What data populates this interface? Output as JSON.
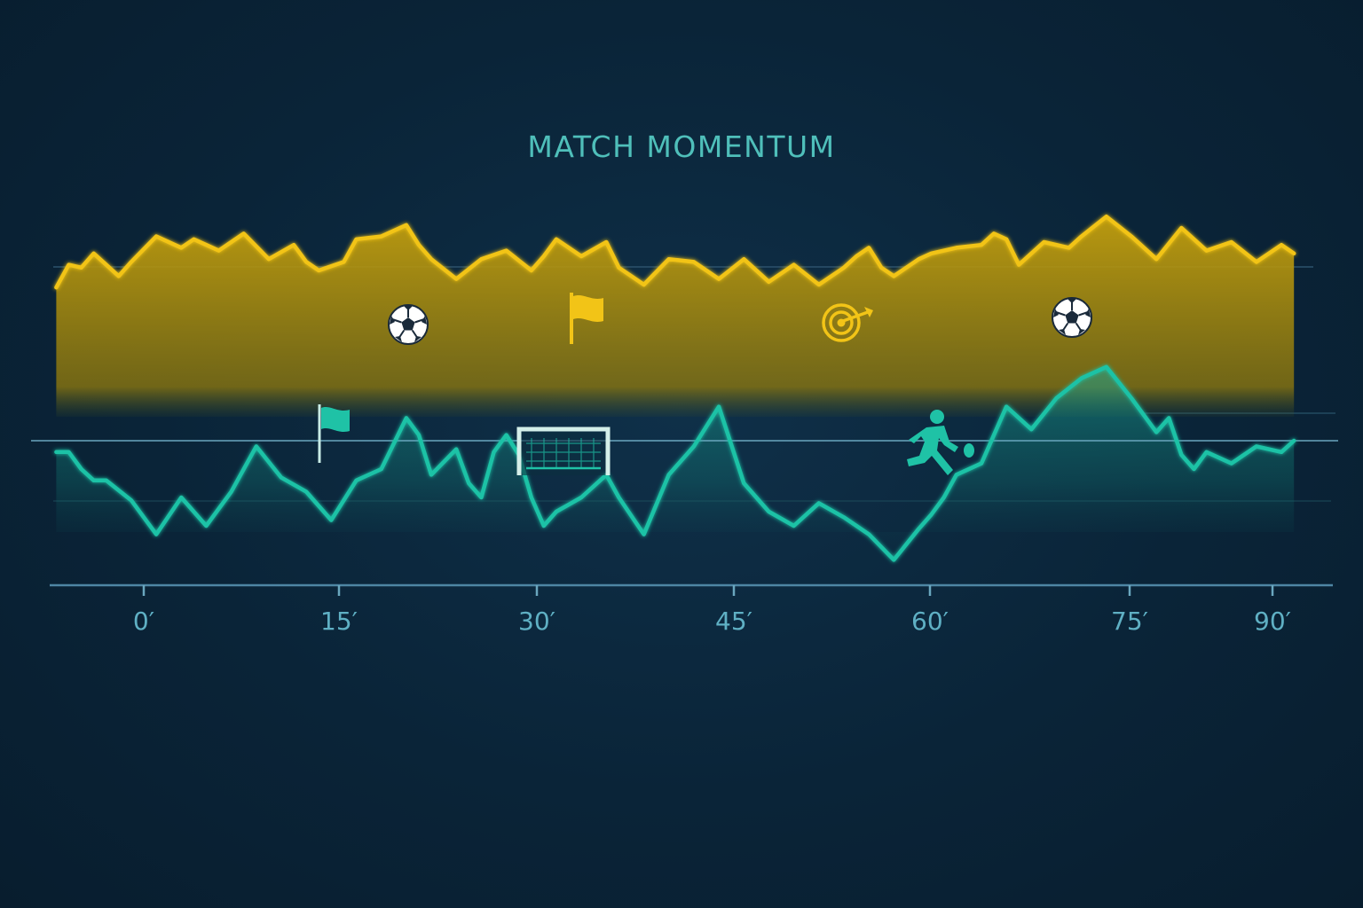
{
  "chart_data": {
    "type": "area",
    "title": "MATCH MOMENTUM",
    "xlabel": "",
    "ylabel": "",
    "x_ticks": [
      "0′",
      "15′",
      "30′",
      "45′",
      "60′",
      "75′",
      "90′"
    ],
    "xlim": [
      -7,
      93
    ],
    "ylim": [
      -1,
      1
    ],
    "grid": false,
    "legend": "none",
    "series": [
      {
        "color": "#f2c417",
        "x": [
          -7,
          -6,
          -5,
          -4,
          -3,
          -2,
          -1,
          1,
          3,
          4,
          6,
          8,
          10,
          12,
          13,
          14,
          16,
          17,
          19,
          21,
          22,
          23,
          25,
          27,
          29,
          31,
          32,
          33,
          35,
          37,
          38,
          40,
          42,
          44,
          46,
          48,
          50,
          52,
          54,
          56,
          57,
          58,
          59,
          60,
          62,
          63,
          65,
          67,
          68,
          69,
          70,
          72,
          74,
          75,
          77,
          79,
          81,
          83,
          85,
          87,
          89,
          91,
          92
        ],
        "values": [
          0.54,
          0.62,
          0.61,
          0.66,
          0.62,
          0.58,
          0.63,
          0.72,
          0.68,
          0.71,
          0.67,
          0.73,
          0.64,
          0.69,
          0.63,
          0.6,
          0.63,
          0.71,
          0.72,
          0.76,
          0.69,
          0.64,
          0.57,
          0.64,
          0.67,
          0.6,
          0.65,
          0.71,
          0.65,
          0.7,
          0.61,
          0.55,
          0.64,
          0.63,
          0.57,
          0.64,
          0.56,
          0.62,
          0.55,
          0.61,
          0.65,
          0.68,
          0.61,
          0.58,
          0.64,
          0.66,
          0.68,
          0.69,
          0.73,
          0.71,
          0.62,
          0.7,
          0.68,
          0.72,
          0.79,
          0.72,
          0.64,
          0.75,
          0.67,
          0.7,
          0.63,
          0.69,
          0.66
        ]
      },
      {
        "color": "#1fc2a6",
        "x": [
          -7,
          -6,
          -5,
          -4,
          -3,
          -1,
          1,
          3,
          5,
          7,
          9,
          11,
          13,
          15,
          17,
          19,
          21,
          22,
          23,
          25,
          26,
          27,
          28,
          29,
          30,
          31,
          32,
          33,
          35,
          37,
          38,
          40,
          42,
          44,
          46,
          48,
          50,
          52,
          54,
          56,
          58,
          60,
          62,
          63,
          64,
          65,
          67,
          69,
          71,
          73,
          75,
          77,
          79,
          81,
          82,
          83,
          84,
          85,
          87,
          89,
          91,
          92
        ],
        "values": [
          -0.04,
          -0.04,
          -0.1,
          -0.14,
          -0.14,
          -0.21,
          -0.33,
          -0.2,
          -0.3,
          -0.18,
          -0.02,
          -0.13,
          -0.18,
          -0.28,
          -0.14,
          -0.1,
          0.08,
          0.02,
          -0.12,
          -0.03,
          -0.15,
          -0.2,
          -0.04,
          0.02,
          -0.05,
          -0.2,
          -0.3,
          -0.25,
          -0.2,
          -0.12,
          -0.2,
          -0.33,
          -0.12,
          -0.02,
          0.12,
          -0.15,
          -0.25,
          -0.3,
          -0.22,
          -0.27,
          -0.33,
          -0.42,
          -0.31,
          -0.26,
          -0.2,
          -0.12,
          -0.08,
          0.12,
          0.04,
          0.15,
          0.22,
          0.26,
          0.15,
          0.03,
          0.08,
          -0.05,
          -0.1,
          -0.04,
          -0.08,
          -0.02,
          -0.04,
          0
        ]
      }
    ]
  }
}
